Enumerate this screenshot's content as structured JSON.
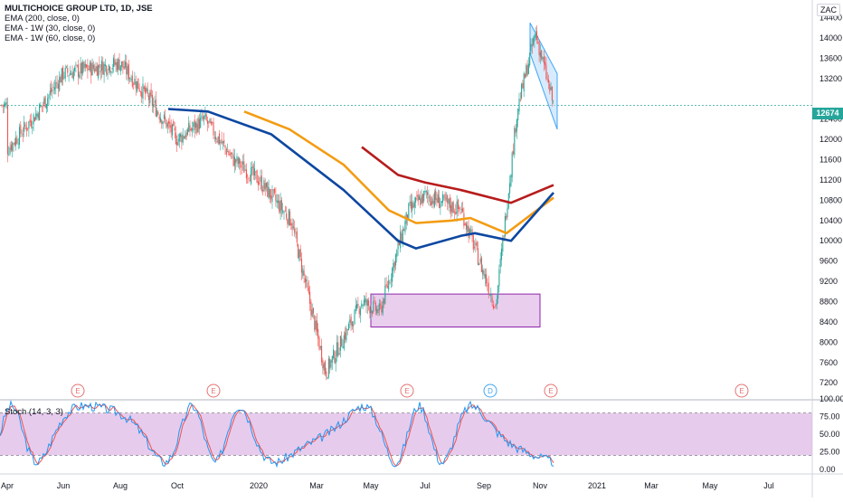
{
  "header": {
    "symbol_title": "MULTICHOICE GROUP LTD, 1D, JSE",
    "indicators": [
      "EMA (200, close, 0)",
      "EMA - 1W (30, close, 0)",
      "EMA - 1W (60, close, 0)"
    ],
    "currency": "ZAC",
    "last_price": "12674"
  },
  "colors": {
    "up": "#26a69a",
    "down": "#ef5350",
    "ema200": "#b71c1c",
    "ema30w": "#f39c12",
    "ema60w": "#0d47a1",
    "zone_fill": "#e1bee7",
    "zone_stroke": "#8e24aa",
    "channel_fill": "#bbdefb",
    "channel_stroke": "#42a5f5",
    "stoch_band": "#e1bee7",
    "stoch_k": "#2196f3",
    "stoch_d": "#ef5350",
    "event_earnings": "#e57373",
    "event_dividend": "#42a5f5"
  },
  "chart_data": {
    "type": "candlestick",
    "y_ticks": [
      7200,
      7600,
      8000,
      8400,
      8800,
      9200,
      9600,
      10000,
      10400,
      10800,
      11200,
      11600,
      12000,
      12400,
      13200,
      13600,
      14000,
      14400
    ],
    "ylim": [
      6900,
      14750
    ],
    "x_ticks": [
      "Apr",
      "Jun",
      "Aug",
      "Oct",
      "2020",
      "Mar",
      "May",
      "Jul",
      "Sep",
      "Nov",
      "2021",
      "Mar",
      "May",
      "Jul"
    ],
    "close_anchors": [
      [
        "Apr",
        11800
      ],
      [
        "May",
        12500
      ],
      [
        "Jun",
        13300
      ],
      [
        "Jul",
        13400
      ],
      [
        "Aug",
        13500
      ],
      [
        "Sep",
        12800
      ],
      [
        "Oct",
        12000
      ],
      [
        "Nov",
        12400
      ],
      [
        "Dec",
        11600
      ],
      [
        "2020",
        11200
      ],
      [
        "Feb",
        10400
      ],
      [
        "Mar",
        7400
      ],
      [
        "Apr",
        8800
      ],
      [
        "May",
        8600
      ],
      [
        "Jun",
        10600
      ],
      [
        "Jul",
        10900
      ],
      [
        "Aug",
        10600
      ],
      [
        "Sep",
        8700
      ],
      [
        "Oct",
        12600
      ],
      [
        "Oct",
        14100
      ],
      [
        "Nov",
        12674
      ]
    ],
    "ema200": [
      [
        "Dec",
        11850
      ],
      [
        "Feb",
        11300
      ],
      [
        "Jun",
        11150
      ],
      [
        "Aug",
        11000
      ],
      [
        "Sep",
        10750
      ],
      [
        "Nov",
        11100
      ]
    ],
    "ema30w": [
      [
        "Oct",
        12550
      ],
      [
        "Dec",
        12200
      ],
      [
        "Feb",
        11500
      ],
      [
        "Apr",
        10600
      ],
      [
        "May",
        10350
      ],
      [
        "Jul",
        10400
      ],
      [
        "Aug",
        10450
      ],
      [
        "Sep",
        10150
      ],
      [
        "Nov",
        10850
      ]
    ],
    "ema60w": [
      [
        "Sep",
        12600
      ],
      [
        "Oct",
        12550
      ],
      [
        "Dec",
        12100
      ],
      [
        "Feb",
        11000
      ],
      [
        "Apr",
        10000
      ],
      [
        "May",
        9850
      ],
      [
        "Jul",
        10100
      ],
      [
        "Aug",
        10150
      ],
      [
        "Sep",
        10000
      ],
      [
        "Nov",
        10950
      ]
    ],
    "support_zone": {
      "from": "May",
      "to": "Oct",
      "low": 8300,
      "high": 8950
    },
    "channel": {
      "from": "Oct",
      "to": "Nov",
      "top": [
        14300,
        13300
      ],
      "bottom": [
        13700,
        12200
      ]
    },
    "events": [
      {
        "label": "E",
        "type": "earnings",
        "at": "May"
      },
      {
        "label": "E",
        "type": "earnings",
        "at": "Oct"
      },
      {
        "label": "E",
        "type": "earnings",
        "at": "Jun"
      },
      {
        "label": "D",
        "type": "dividend",
        "at": "Sep"
      },
      {
        "label": "E",
        "type": "earnings",
        "at": "Nov"
      },
      {
        "label": "E",
        "type": "earnings",
        "at": "May"
      }
    ],
    "stochastic": {
      "label": "Stoch (14, 3, 3)",
      "y_ticks": [
        "100.00",
        "75.00",
        "50.00",
        "25.00",
        "0.00"
      ],
      "ylim": [
        0,
        100
      ],
      "band": [
        20,
        80
      ]
    }
  }
}
